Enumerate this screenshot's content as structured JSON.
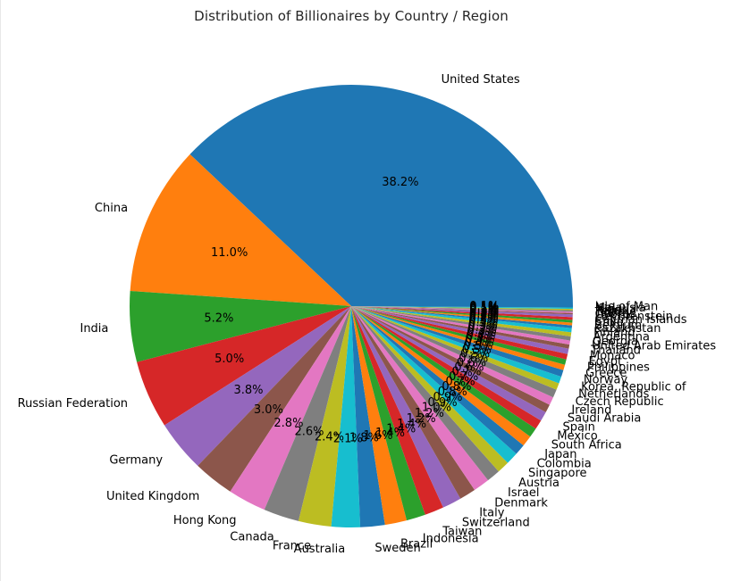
{
  "chart_data": {
    "type": "pie",
    "title": "Distribution of Billionaires by Country / Region",
    "start_angle_deg": 0,
    "direction": "counterclockwise",
    "slices": [
      {
        "label": "United States",
        "value": 38.2,
        "pct_label": "38.2%",
        "color": "#1f77b4"
      },
      {
        "label": "China",
        "value": 11.0,
        "pct_label": "11.0%",
        "color": "#ff7f0e"
      },
      {
        "label": "India",
        "value": 5.2,
        "pct_label": "5.2%",
        "color": "#2ca02c"
      },
      {
        "label": "Russian Federation",
        "value": 5.0,
        "pct_label": "5.0%",
        "color": "#d62728"
      },
      {
        "label": "Germany",
        "value": 3.8,
        "pct_label": "3.8%",
        "color": "#9467bd"
      },
      {
        "label": "United Kingdom",
        "value": 3.0,
        "pct_label": "3.0%",
        "color": "#8c564b"
      },
      {
        "label": "Hong Kong",
        "value": 2.8,
        "pct_label": "2.8%",
        "color": "#e377c2"
      },
      {
        "label": "Canada",
        "value": 2.6,
        "pct_label": "2.6%",
        "color": "#7f7f7f"
      },
      {
        "label": "France",
        "value": 2.4,
        "pct_label": "2.4%",
        "color": "#bcbd22"
      },
      {
        "label": "Australia",
        "value": 2.1,
        "pct_label": "2.1%",
        "color": "#17becf"
      },
      {
        "label": "Sweden",
        "value": 1.8,
        "pct_label": "1.8%",
        "color": "#1f77b4"
      },
      {
        "label": "Brazil",
        "value": 1.6,
        "pct_label": "1.6%",
        "color": "#ff7f0e"
      },
      {
        "label": "Indonesia",
        "value": 1.4,
        "pct_label": "1.4%",
        "color": "#2ca02c"
      },
      {
        "label": "Taiwan",
        "value": 1.4,
        "pct_label": "1.4%",
        "color": "#d62728"
      },
      {
        "label": "Switzerland",
        "value": 1.4,
        "pct_label": "1.4%",
        "color": "#9467bd"
      },
      {
        "label": "Italy",
        "value": 1.2,
        "pct_label": "1.2%",
        "color": "#8c564b"
      },
      {
        "label": "Denmark",
        "value": 1.2,
        "pct_label": "1.2%",
        "color": "#e377c2"
      },
      {
        "label": "Israel",
        "value": 1.0,
        "pct_label": "1.0%",
        "color": "#7f7f7f"
      },
      {
        "label": "Austria",
        "value": 0.9,
        "pct_label": "0.9%",
        "color": "#bcbd22"
      },
      {
        "label": "Singapore",
        "value": 0.9,
        "pct_label": "0.9%",
        "color": "#17becf"
      },
      {
        "label": "Colombia",
        "value": 0.8,
        "pct_label": "0.8%",
        "color": "#1f77b4"
      },
      {
        "label": "Japan",
        "value": 0.8,
        "pct_label": "0.8%",
        "color": "#ff7f0e"
      },
      {
        "label": "South Africa",
        "value": 0.7,
        "pct_label": "0.7%",
        "color": "#2ca02c"
      },
      {
        "label": "Mexico",
        "value": 0.7,
        "pct_label": "0.7%",
        "color": "#d62728"
      },
      {
        "label": "Spain",
        "value": 0.7,
        "pct_label": "0.7%",
        "color": "#9467bd"
      },
      {
        "label": "Saudi Arabia",
        "value": 0.6,
        "pct_label": "0.6%",
        "color": "#8c564b"
      },
      {
        "label": "Ireland",
        "value": 0.6,
        "pct_label": "0.6%",
        "color": "#e377c2"
      },
      {
        "label": "Czech Republic",
        "value": 0.6,
        "pct_label": "0.6%",
        "color": "#7f7f7f"
      },
      {
        "label": "Netherlands",
        "value": 0.5,
        "pct_label": "0.5%",
        "color": "#bcbd22"
      },
      {
        "label": "Korea, Republic of",
        "value": 0.5,
        "pct_label": "0.5%",
        "color": "#17becf"
      },
      {
        "label": "Norway",
        "value": 0.5,
        "pct_label": "0.5%",
        "color": "#1f77b4"
      },
      {
        "label": "Greece",
        "value": 0.4,
        "pct_label": "0.4%",
        "color": "#ff7f0e"
      },
      {
        "label": "Philippines",
        "value": 0.4,
        "pct_label": "0.4%",
        "color": "#2ca02c"
      },
      {
        "label": "Egypt",
        "value": 0.4,
        "pct_label": "0.4%",
        "color": "#d62728"
      },
      {
        "label": "Monaco",
        "value": 0.4,
        "pct_label": "0.4%",
        "color": "#9467bd"
      },
      {
        "label": "Thailand",
        "value": 0.3,
        "pct_label": "0.3%",
        "color": "#8c564b"
      },
      {
        "label": "United Arab Emirates",
        "value": 0.3,
        "pct_label": "0.3%",
        "color": "#e377c2"
      },
      {
        "label": "Georgia",
        "value": 0.3,
        "pct_label": "0.3%",
        "color": "#7f7f7f"
      },
      {
        "label": "Argentina",
        "value": 0.3,
        "pct_label": "0.3%",
        "color": "#bcbd22"
      },
      {
        "label": "Finland",
        "value": 0.3,
        "pct_label": "0.3%",
        "color": "#17becf"
      },
      {
        "label": "Kazakhstan",
        "value": 0.2,
        "pct_label": "0.2%",
        "color": "#1f77b4"
      },
      {
        "label": "Belgium",
        "value": 0.2,
        "pct_label": "0.2%",
        "color": "#ff7f0e"
      },
      {
        "label": "Chile",
        "value": 0.2,
        "pct_label": "0.2%",
        "color": "#2ca02c"
      },
      {
        "label": "Cayman Islands",
        "value": 0.2,
        "pct_label": "0.2%",
        "color": "#d62728"
      },
      {
        "label": "Liechtenstein",
        "value": 0.2,
        "pct_label": "0.2%",
        "color": "#9467bd"
      },
      {
        "label": "Cyprus",
        "value": 0.1,
        "pct_label": "0.1%",
        "color": "#8c564b"
      },
      {
        "label": "Turkey",
        "value": 0.1,
        "pct_label": "0.1%",
        "color": "#e377c2"
      },
      {
        "label": "Peru",
        "value": 0.1,
        "pct_label": "0.1%",
        "color": "#7f7f7f"
      },
      {
        "label": "Nigeria",
        "value": 0.1,
        "pct_label": "0.1%",
        "color": "#bcbd22"
      },
      {
        "label": "Malaysia",
        "value": 0.1,
        "pct_label": "0.1%",
        "color": "#17becf"
      },
      {
        "label": "Isle of Man",
        "value": 0.1,
        "pct_label": "0.1%",
        "color": "#1f77b4"
      }
    ]
  }
}
